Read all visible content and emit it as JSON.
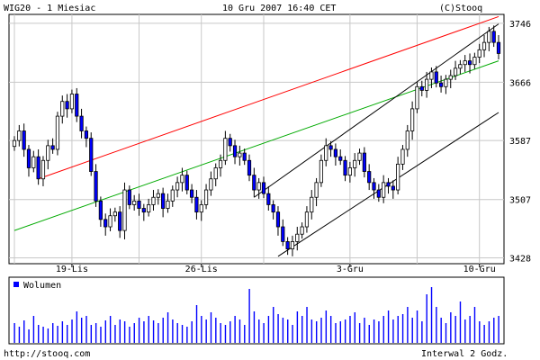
{
  "header": {
    "left": "WIG20 - 1 Miesiac",
    "center": "10 Gru 2007 16:40 CET",
    "right": "(C)Stooq"
  },
  "footer": {
    "left": "http://stooq.com",
    "right": "Interwal 2 Godz."
  },
  "colors": {
    "candle_up": "#ffffff",
    "candle_down": "#0000ff",
    "volume": "#0000ff",
    "resistance_line": "#ff0000",
    "trend_line": "#00aa00",
    "channel_line": "#000000",
    "grid": "#c8c8c8"
  },
  "chart_data": [
    {
      "type": "candlestick",
      "title": "WIG20 - 1 Miesiac",
      "x_ticks": [
        "19-Lis",
        "26-Lis",
        "3-Gru",
        "10-Gru"
      ],
      "y_ticks": [
        3428,
        3507,
        3587,
        3666,
        3746
      ],
      "ylim": [
        3420,
        3758
      ],
      "grid": true,
      "candles_close": [
        3587,
        3600,
        3575,
        3550,
        3565,
        3535,
        3560,
        3580,
        3575,
        3620,
        3640,
        3630,
        3650,
        3620,
        3600,
        3590,
        3545,
        3505,
        3480,
        3470,
        3485,
        3490,
        3465,
        3520,
        3500,
        3505,
        3495,
        3490,
        3500,
        3510,
        3515,
        3495,
        3505,
        3520,
        3530,
        3540,
        3520,
        3510,
        3490,
        3500,
        3520,
        3535,
        3550,
        3560,
        3590,
        3580,
        3565,
        3570,
        3560,
        3540,
        3520,
        3530,
        3515,
        3500,
        3490,
        3470,
        3450,
        3440,
        3450,
        3460,
        3470,
        3490,
        3510,
        3530,
        3560,
        3580,
        3575,
        3565,
        3560,
        3540,
        3550,
        3560,
        3570,
        3545,
        3530,
        3520,
        3510,
        3530,
        3525,
        3520,
        3555,
        3575,
        3600,
        3630,
        3660,
        3655,
        3670,
        3680,
        3665,
        3660,
        3670,
        3675,
        3685,
        3690,
        3695,
        3690,
        3700,
        3710,
        3720,
        3735,
        3720,
        3705
      ],
      "volume": [
        22,
        18,
        25,
        15,
        30,
        20,
        18,
        16,
        22,
        19,
        24,
        20,
        26,
        35,
        28,
        30,
        20,
        22,
        18,
        25,
        30,
        20,
        26,
        24,
        18,
        22,
        28,
        24,
        30,
        25,
        22,
        28,
        34,
        26,
        22,
        20,
        18,
        24,
        42,
        30,
        26,
        34,
        28,
        22,
        20,
        24,
        30,
        26,
        20,
        60,
        35,
        26,
        22,
        30,
        40,
        32,
        28,
        26,
        20,
        35,
        30,
        40,
        26,
        24,
        28,
        36,
        30,
        22,
        24,
        26,
        30,
        34,
        22,
        28,
        20,
        26,
        24,
        30,
        36,
        26,
        30,
        32,
        40,
        28,
        36,
        24,
        54,
        62,
        40,
        28,
        22,
        34,
        30,
        46,
        26,
        30,
        40,
        24,
        20,
        24,
        28,
        30
      ],
      "volume_legend": "Wolumen"
    }
  ],
  "overlays": {
    "resistance_line": {
      "from": [
        5,
        3535
      ],
      "to": [
        101,
        3755
      ]
    },
    "trend_line": {
      "from": [
        0,
        3465
      ],
      "to": [
        101,
        3695
      ]
    },
    "channel_upper": {
      "from": [
        50,
        3510
      ],
      "to": [
        101,
        3745
      ]
    },
    "channel_lower": {
      "from": [
        55,
        3430
      ],
      "to": [
        101,
        3625
      ]
    }
  }
}
